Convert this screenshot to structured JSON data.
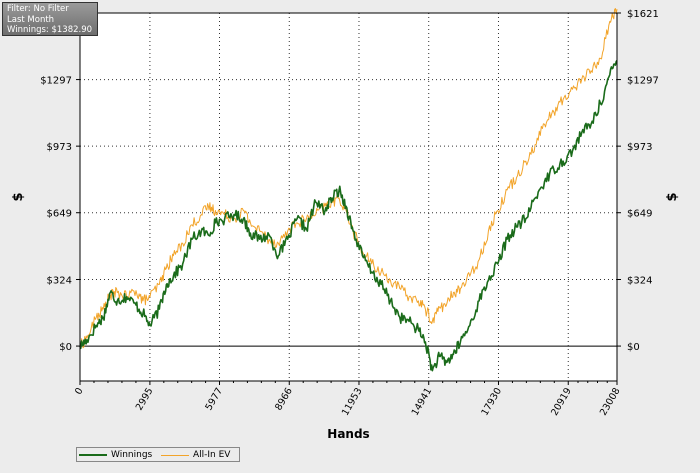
{
  "info_box": {
    "filter": "Filter: No Filter",
    "period": "Last Month",
    "winnings": "Winnings: $1382.90"
  },
  "legend": {
    "winnings_label": "Winnings",
    "ev_label": "All-In EV"
  },
  "colors": {
    "winnings": "#1a6b1a",
    "all_in_ev": "#f2a42a",
    "plot_background": "#ffffff",
    "page_background": "#ececec"
  },
  "chart_data": {
    "type": "line",
    "title": "",
    "xlabel": "Hands",
    "ylabel": "$",
    "xlim": [
      0,
      23008
    ],
    "ylim": [
      -170,
      1621
    ],
    "x_ticks": [
      0,
      2995,
      5977,
      8966,
      11953,
      14941,
      17930,
      20919,
      23008
    ],
    "x_tick_labels": [
      "0",
      "2995",
      "5977",
      "8966",
      "11953",
      "14941",
      "17930",
      "20919",
      "23008"
    ],
    "y_ticks": [
      0,
      324,
      649,
      973,
      1297,
      1621
    ],
    "y_tick_labels": [
      "$0",
      "$324",
      "$649",
      "$973",
      "$1297",
      "$1621"
    ],
    "grid": true,
    "legend_position": "bottom-left",
    "series": [
      {
        "name": "Winnings",
        "x": [
          0,
          300,
          700,
          1000,
          1300,
          1600,
          2000,
          2400,
          2700,
          3000,
          3400,
          3700,
          4000,
          4400,
          4800,
          5200,
          5500,
          5800,
          6200,
          6600,
          7000,
          7300,
          7700,
          8100,
          8500,
          8900,
          9300,
          9700,
          10100,
          10500,
          10800,
          11100,
          11400,
          11700,
          12100,
          12500,
          12900,
          13300,
          13700,
          14100,
          14500,
          14800,
          15100,
          15400,
          15700,
          16000,
          16300,
          16700,
          17100,
          17500,
          17900,
          18300,
          18700,
          19100,
          19500,
          19900,
          20300,
          20700,
          21100,
          21500,
          21900,
          22300,
          22700,
          23008
        ],
        "values": [
          0,
          30,
          100,
          140,
          260,
          220,
          240,
          200,
          160,
          100,
          180,
          300,
          340,
          400,
          520,
          560,
          540,
          600,
          620,
          640,
          620,
          550,
          520,
          540,
          440,
          520,
          620,
          570,
          700,
          660,
          720,
          760,
          680,
          560,
          440,
          360,
          300,
          220,
          140,
          120,
          80,
          20,
          -120,
          -50,
          -80,
          -40,
          20,
          100,
          220,
          320,
          400,
          520,
          580,
          620,
          720,
          800,
          860,
          900,
          950,
          1040,
          1080,
          1180,
          1320,
          1390
        ]
      },
      {
        "name": "All-In EV",
        "x": [
          0,
          300,
          700,
          1000,
          1300,
          1600,
          2000,
          2400,
          2700,
          3000,
          3400,
          3700,
          4000,
          4400,
          4800,
          5200,
          5500,
          5800,
          6200,
          6600,
          7000,
          7300,
          7700,
          8100,
          8500,
          8900,
          9300,
          9700,
          10100,
          10500,
          10800,
          11100,
          11400,
          11700,
          12100,
          12500,
          12900,
          13300,
          13700,
          14100,
          14500,
          14800,
          15100,
          15400,
          15700,
          16000,
          16300,
          16700,
          17100,
          17500,
          17900,
          18300,
          18700,
          19100,
          19500,
          19900,
          20300,
          20700,
          21100,
          21500,
          21900,
          22300,
          22700,
          23008
        ],
        "values": [
          0,
          40,
          140,
          180,
          250,
          260,
          240,
          270,
          220,
          240,
          300,
          380,
          440,
          500,
          590,
          640,
          680,
          660,
          640,
          620,
          660,
          600,
          560,
          520,
          500,
          560,
          600,
          620,
          640,
          680,
          700,
          720,
          660,
          560,
          460,
          400,
          360,
          320,
          280,
          240,
          220,
          180,
          120,
          190,
          200,
          260,
          280,
          340,
          420,
          560,
          660,
          760,
          820,
          900,
          980,
          1080,
          1140,
          1200,
          1250,
          1300,
          1340,
          1400,
          1580,
          1640
        ]
      }
    ]
  }
}
